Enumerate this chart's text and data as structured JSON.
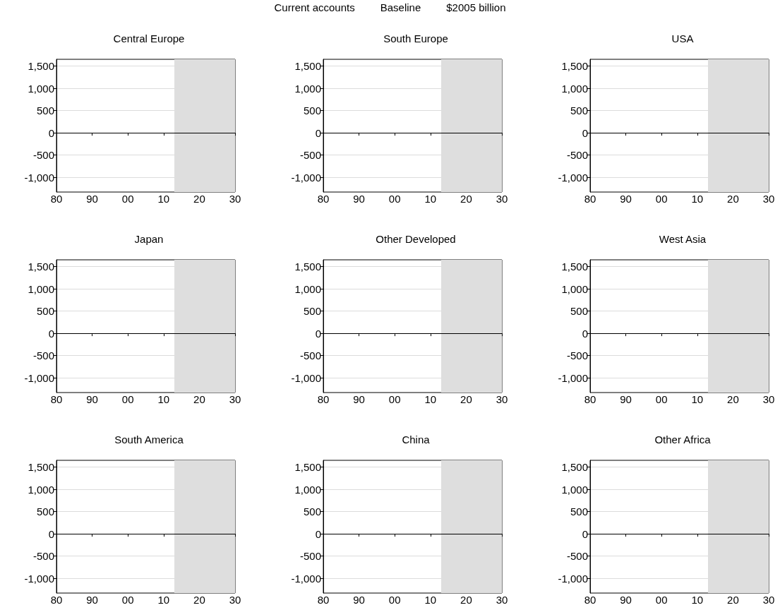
{
  "chart_data": [
    {
      "type": "other",
      "annotations": [
        "Current accounts",
        "Baseline",
        "$2005 billion"
      ]
    },
    {
      "type": "line",
      "title": "Central Europe",
      "xlim": [
        1980,
        2030
      ],
      "xticks": [
        {
          "value": 1980,
          "label": "80"
        },
        {
          "value": 1990,
          "label": "90"
        },
        {
          "value": 2000,
          "label": "00"
        },
        {
          "value": 2010,
          "label": "10"
        },
        {
          "value": 2020,
          "label": "20"
        },
        {
          "value": 2030,
          "label": "30"
        }
      ],
      "ylim": [
        -1330,
        1650
      ],
      "yticks": [
        {
          "value": -1000,
          "label": "-1,000"
        },
        -500,
        0,
        500,
        {
          "value": 1000,
          "label": "1,000"
        },
        {
          "value": 1500,
          "label": "1,500"
        }
      ],
      "grid": "y",
      "ref_lines": [
        {
          "axis": "y",
          "value": 0,
          "color": "#000000"
        }
      ],
      "bands": [
        {
          "axis": "x",
          "from": 2013,
          "to": 2030,
          "color": "#dedede"
        }
      ]
    },
    {
      "type": "line",
      "title": "South Europe",
      "xlim": [
        1980,
        2030
      ],
      "xticks": [
        {
          "value": 1980,
          "label": "80"
        },
        {
          "value": 1990,
          "label": "90"
        },
        {
          "value": 2000,
          "label": "00"
        },
        {
          "value": 2010,
          "label": "10"
        },
        {
          "value": 2020,
          "label": "20"
        },
        {
          "value": 2030,
          "label": "30"
        }
      ],
      "ylim": [
        -1330,
        1650
      ],
      "yticks": [
        {
          "value": -1000,
          "label": "-1,000"
        },
        -500,
        0,
        500,
        {
          "value": 1000,
          "label": "1,000"
        },
        {
          "value": 1500,
          "label": "1,500"
        }
      ],
      "grid": "y",
      "ref_lines": [
        {
          "axis": "y",
          "value": 0,
          "color": "#000000"
        }
      ],
      "bands": [
        {
          "axis": "x",
          "from": 2013,
          "to": 2030,
          "color": "#dedede"
        }
      ]
    },
    {
      "type": "line",
      "title": "USA",
      "xlim": [
        1980,
        2030
      ],
      "xticks": [
        {
          "value": 1980,
          "label": "80"
        },
        {
          "value": 1990,
          "label": "90"
        },
        {
          "value": 2000,
          "label": "00"
        },
        {
          "value": 2010,
          "label": "10"
        },
        {
          "value": 2020,
          "label": "20"
        },
        {
          "value": 2030,
          "label": "30"
        }
      ],
      "ylim": [
        -1330,
        1650
      ],
      "yticks": [
        {
          "value": -1000,
          "label": "-1,000"
        },
        -500,
        0,
        500,
        {
          "value": 1000,
          "label": "1,000"
        },
        {
          "value": 1500,
          "label": "1,500"
        }
      ],
      "grid": "y",
      "ref_lines": [
        {
          "axis": "y",
          "value": 0,
          "color": "#000000"
        }
      ],
      "bands": [
        {
          "axis": "x",
          "from": 2013,
          "to": 2030,
          "color": "#dedede"
        }
      ]
    },
    {
      "type": "line",
      "title": "Japan",
      "xlim": [
        1980,
        2030
      ],
      "xticks": [
        {
          "value": 1980,
          "label": "80"
        },
        {
          "value": 1990,
          "label": "90"
        },
        {
          "value": 2000,
          "label": "00"
        },
        {
          "value": 2010,
          "label": "10"
        },
        {
          "value": 2020,
          "label": "20"
        },
        {
          "value": 2030,
          "label": "30"
        }
      ],
      "ylim": [
        -1330,
        1650
      ],
      "yticks": [
        {
          "value": -1000,
          "label": "-1,000"
        },
        -500,
        0,
        500,
        {
          "value": 1000,
          "label": "1,000"
        },
        {
          "value": 1500,
          "label": "1,500"
        }
      ],
      "grid": "y",
      "ref_lines": [
        {
          "axis": "y",
          "value": 0,
          "color": "#000000"
        }
      ],
      "bands": [
        {
          "axis": "x",
          "from": 2013,
          "to": 2030,
          "color": "#dedede"
        }
      ]
    },
    {
      "type": "line",
      "title": "Other Developed",
      "xlim": [
        1980,
        2030
      ],
      "xticks": [
        {
          "value": 1980,
          "label": "80"
        },
        {
          "value": 1990,
          "label": "90"
        },
        {
          "value": 2000,
          "label": "00"
        },
        {
          "value": 2010,
          "label": "10"
        },
        {
          "value": 2020,
          "label": "20"
        },
        {
          "value": 2030,
          "label": "30"
        }
      ],
      "ylim": [
        -1330,
        1650
      ],
      "yticks": [
        {
          "value": -1000,
          "label": "-1,000"
        },
        -500,
        0,
        500,
        {
          "value": 1000,
          "label": "1,000"
        },
        {
          "value": 1500,
          "label": "1,500"
        }
      ],
      "grid": "y",
      "ref_lines": [
        {
          "axis": "y",
          "value": 0,
          "color": "#000000"
        }
      ],
      "bands": [
        {
          "axis": "x",
          "from": 2013,
          "to": 2030,
          "color": "#dedede"
        }
      ]
    },
    {
      "type": "line",
      "title": "West Asia",
      "xlim": [
        1980,
        2030
      ],
      "xticks": [
        {
          "value": 1980,
          "label": "80"
        },
        {
          "value": 1990,
          "label": "90"
        },
        {
          "value": 2000,
          "label": "00"
        },
        {
          "value": 2010,
          "label": "10"
        },
        {
          "value": 2020,
          "label": "20"
        },
        {
          "value": 2030,
          "label": "30"
        }
      ],
      "ylim": [
        -1330,
        1650
      ],
      "yticks": [
        {
          "value": -1000,
          "label": "-1,000"
        },
        -500,
        0,
        500,
        {
          "value": 1000,
          "label": "1,000"
        },
        {
          "value": 1500,
          "label": "1,500"
        }
      ],
      "grid": "y",
      "ref_lines": [
        {
          "axis": "y",
          "value": 0,
          "color": "#000000"
        }
      ],
      "bands": [
        {
          "axis": "x",
          "from": 2013,
          "to": 2030,
          "color": "#dedede"
        }
      ]
    },
    {
      "type": "line",
      "title": "South America",
      "xlim": [
        1980,
        2030
      ],
      "xticks": [
        {
          "value": 1980,
          "label": "80"
        },
        {
          "value": 1990,
          "label": "90"
        },
        {
          "value": 2000,
          "label": "00"
        },
        {
          "value": 2010,
          "label": "10"
        },
        {
          "value": 2020,
          "label": "20"
        },
        {
          "value": 2030,
          "label": "30"
        }
      ],
      "ylim": [
        -1330,
        1650
      ],
      "yticks": [
        {
          "value": -1000,
          "label": "-1,000"
        },
        -500,
        0,
        500,
        {
          "value": 1000,
          "label": "1,000"
        },
        {
          "value": 1500,
          "label": "1,500"
        }
      ],
      "grid": "y",
      "ref_lines": [
        {
          "axis": "y",
          "value": 0,
          "color": "#000000"
        }
      ],
      "bands": [
        {
          "axis": "x",
          "from": 2013,
          "to": 2030,
          "color": "#dedede"
        }
      ]
    },
    {
      "type": "line",
      "title": "China",
      "xlim": [
        1980,
        2030
      ],
      "xticks": [
        {
          "value": 1980,
          "label": "80"
        },
        {
          "value": 1990,
          "label": "90"
        },
        {
          "value": 2000,
          "label": "00"
        },
        {
          "value": 2010,
          "label": "10"
        },
        {
          "value": 2020,
          "label": "20"
        },
        {
          "value": 2030,
          "label": "30"
        }
      ],
      "ylim": [
        -1330,
        1650
      ],
      "yticks": [
        {
          "value": -1000,
          "label": "-1,000"
        },
        -500,
        0,
        500,
        {
          "value": 1000,
          "label": "1,000"
        },
        {
          "value": 1500,
          "label": "1,500"
        }
      ],
      "grid": "y",
      "ref_lines": [
        {
          "axis": "y",
          "value": 0,
          "color": "#000000"
        }
      ],
      "bands": [
        {
          "axis": "x",
          "from": 2013,
          "to": 2030,
          "color": "#dedede"
        }
      ]
    },
    {
      "type": "line",
      "title": "Other Africa",
      "xlim": [
        1980,
        2030
      ],
      "xticks": [
        {
          "value": 1980,
          "label": "80"
        },
        {
          "value": 1990,
          "label": "90"
        },
        {
          "value": 2000,
          "label": "00"
        },
        {
          "value": 2010,
          "label": "10"
        },
        {
          "value": 2020,
          "label": "20"
        },
        {
          "value": 2030,
          "label": "30"
        }
      ],
      "ylim": [
        -1330,
        1650
      ],
      "yticks": [
        {
          "value": -1000,
          "label": "-1,000"
        },
        -500,
        0,
        500,
        {
          "value": 1000,
          "label": "1,000"
        },
        {
          "value": 1500,
          "label": "1,500"
        }
      ],
      "grid": "y",
      "ref_lines": [
        {
          "axis": "y",
          "value": 0,
          "color": "#000000"
        }
      ],
      "bands": [
        {
          "axis": "x",
          "from": 2013,
          "to": 2030,
          "color": "#dedede"
        }
      ]
    }
  ]
}
